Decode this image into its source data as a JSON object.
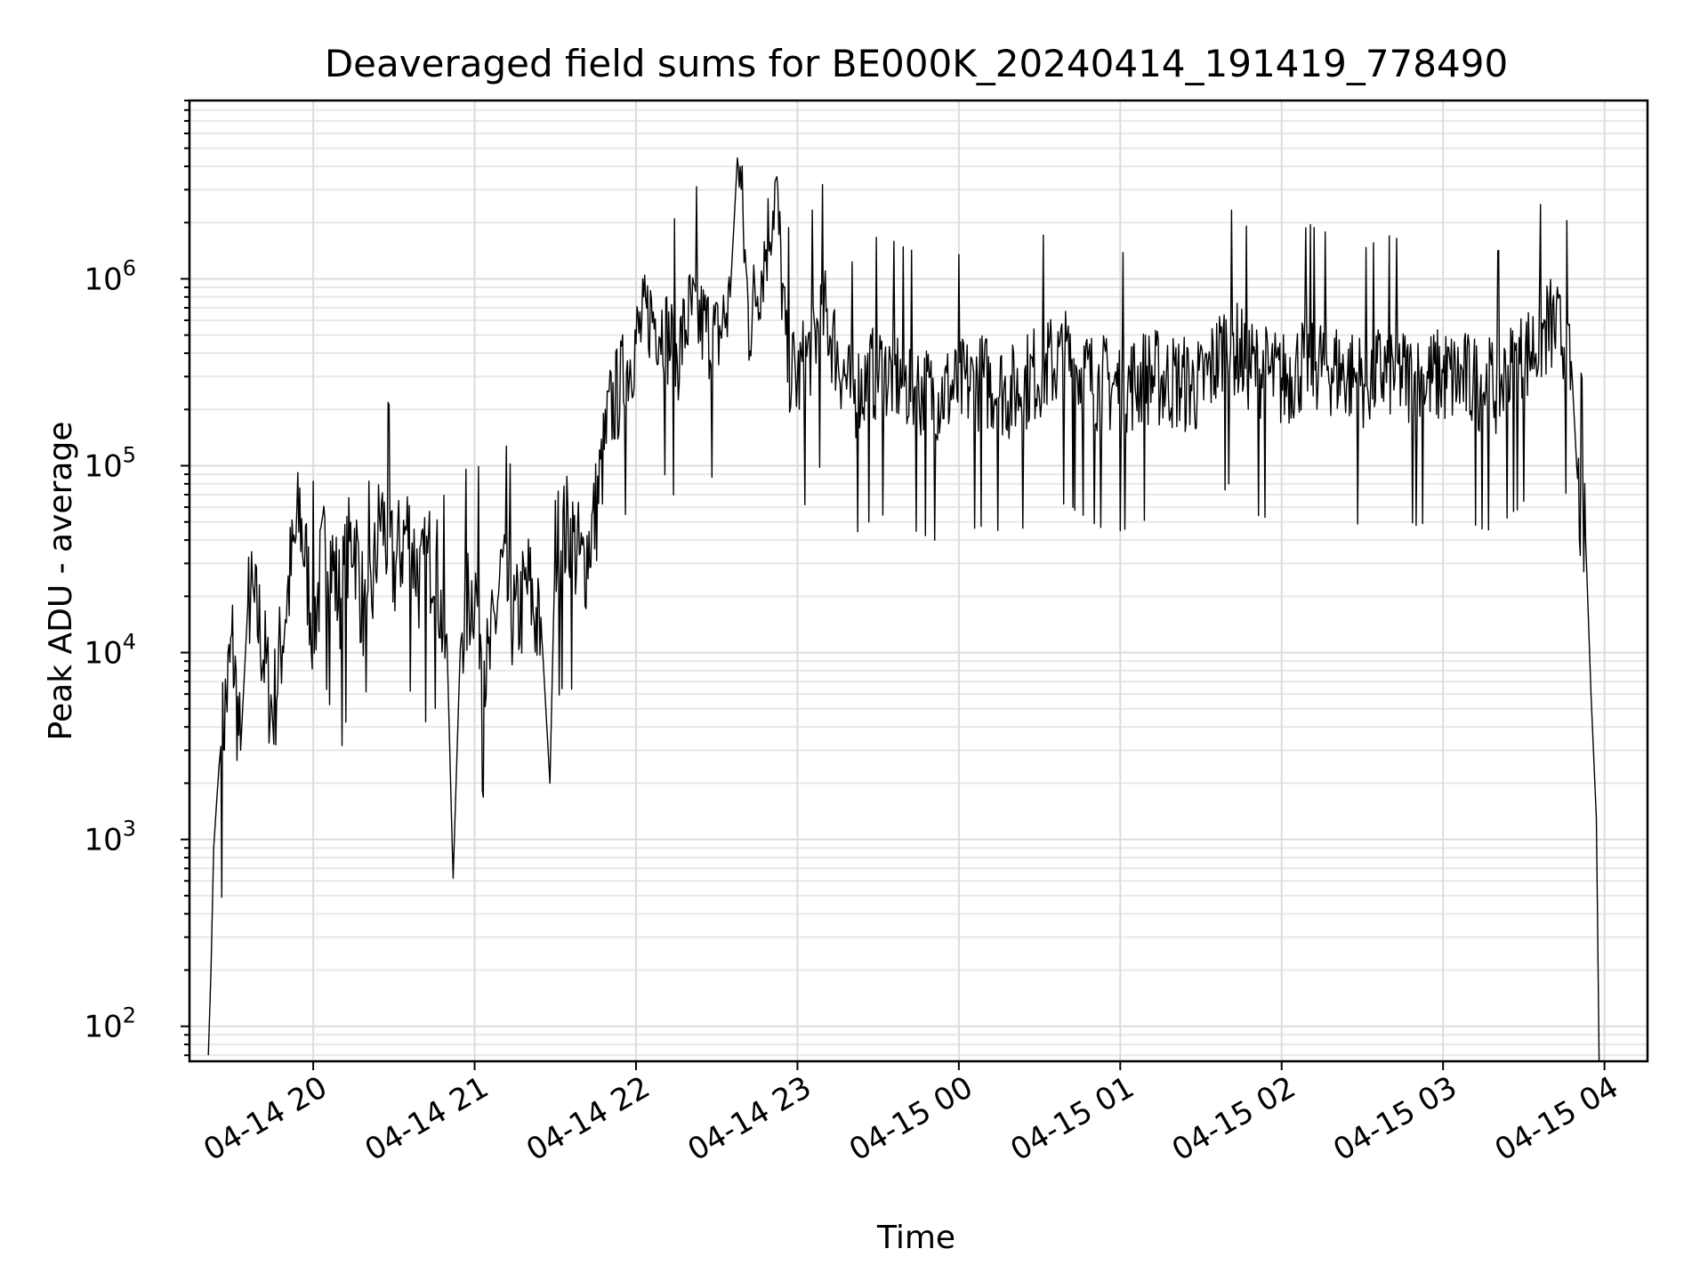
{
  "chart_data": {
    "type": "line",
    "title": "Deaveraged field sums for BE000K_20240414_191419_778490",
    "xlabel": "Time",
    "ylabel": "Peak ADU - average",
    "yscale": "log",
    "ylim": [
      65,
      9000000
    ],
    "xlim_hours_label": [
      "04-14 19:14",
      "04-15 04:16"
    ],
    "grid": true,
    "x_ticks": [
      "04-14 20",
      "04-14 21",
      "04-14 22",
      "04-14 23",
      "04-15 00",
      "04-15 01",
      "04-15 02",
      "04-15 03",
      "04-15 04"
    ],
    "y_ticks": [
      {
        "base": "10",
        "exp": "2",
        "value": 100
      },
      {
        "base": "10",
        "exp": "3",
        "value": 1000
      },
      {
        "base": "10",
        "exp": "4",
        "value": 10000
      },
      {
        "base": "10",
        "exp": "5",
        "value": 100000
      },
      {
        "base": "10",
        "exp": "6",
        "value": 1000000
      }
    ],
    "series": [
      {
        "color": "#000000",
        "points": [
          [
            "04-14 19:21",
            70
          ],
          [
            "04-14 19:22",
            200
          ],
          [
            "04-14 19:23",
            900
          ],
          [
            "04-14 19:25",
            2500
          ],
          [
            "04-14 19:27",
            5000
          ],
          [
            "04-14 19:30",
            12000
          ],
          [
            "04-14 19:33",
            3000
          ],
          [
            "04-14 19:36",
            22000
          ],
          [
            "04-14 19:40",
            15000
          ],
          [
            "04-14 19:45",
            5000
          ],
          [
            "04-14 19:50",
            20000
          ],
          [
            "04-14 19:55",
            60000
          ],
          [
            "04-14 20:00",
            15000
          ],
          [
            "04-14 20:05",
            45000
          ],
          [
            "04-14 20:10",
            20000
          ],
          [
            "04-14 20:15",
            50000
          ],
          [
            "04-14 20:20",
            12000
          ],
          [
            "04-14 20:25",
            60000
          ],
          [
            "04-14 20:30",
            30000
          ],
          [
            "04-14 20:35",
            50000
          ],
          [
            "04-14 20:40",
            25000
          ],
          [
            "04-14 20:45",
            40000
          ],
          [
            "04-14 20:50",
            8000
          ],
          [
            "04-14 20:52",
            620
          ],
          [
            "04-14 20:55",
            15000
          ],
          [
            "04-14 21:00",
            25000
          ],
          [
            "04-14 21:05",
            8000
          ],
          [
            "04-14 21:10",
            30000
          ],
          [
            "04-14 21:15",
            15000
          ],
          [
            "04-14 21:20",
            25000
          ],
          [
            "04-14 21:25",
            12000
          ],
          [
            "04-14 21:28",
            2000
          ],
          [
            "04-14 21:30",
            40000
          ],
          [
            "04-14 21:35",
            50000
          ],
          [
            "04-14 21:40",
            30000
          ],
          [
            "04-14 21:45",
            60000
          ],
          [
            "04-14 21:50",
            200000
          ],
          [
            "04-14 21:55",
            300000
          ],
          [
            "04-14 22:00",
            500000
          ],
          [
            "04-14 22:05",
            700000
          ],
          [
            "04-14 22:10",
            600000
          ],
          [
            "04-14 22:15",
            400000
          ],
          [
            "04-14 22:20",
            700000
          ],
          [
            "04-14 22:25",
            600000
          ],
          [
            "04-14 22:30",
            500000
          ],
          [
            "04-14 22:35",
            800000
          ],
          [
            "04-14 22:38",
            5500000
          ],
          [
            "04-14 22:42",
            600000
          ],
          [
            "04-14 22:48",
            1500000
          ],
          [
            "04-14 22:52",
            3300000
          ],
          [
            "04-14 22:56",
            400000
          ],
          [
            "04-14 23:00",
            300000
          ],
          [
            "04-14 23:10",
            700000
          ],
          [
            "04-14 23:20",
            250000
          ],
          [
            "04-14 23:30",
            350000
          ],
          [
            "04-14 23:40",
            300000
          ],
          [
            "04-14 23:50",
            250000
          ],
          [
            "04-15 00:00",
            280000
          ],
          [
            "04-15 00:10",
            300000
          ],
          [
            "04-15 00:20",
            260000
          ],
          [
            "04-15 00:30",
            350000
          ],
          [
            "04-15 00:40",
            400000
          ],
          [
            "04-15 00:50",
            300000
          ],
          [
            "04-15 01:00",
            280000
          ],
          [
            "04-15 01:10",
            320000
          ],
          [
            "04-15 01:20",
            300000
          ],
          [
            "04-15 01:30",
            280000
          ],
          [
            "04-15 01:40",
            500000
          ],
          [
            "04-15 01:50",
            350000
          ],
          [
            "04-15 02:00",
            300000
          ],
          [
            "04-15 02:10",
            400000
          ],
          [
            "04-15 02:20",
            350000
          ],
          [
            "04-15 02:30",
            300000
          ],
          [
            "04-15 02:40",
            350000
          ],
          [
            "04-15 02:50",
            300000
          ],
          [
            "04-15 03:00",
            320000
          ],
          [
            "04-15 03:10",
            300000
          ],
          [
            "04-15 03:20",
            280000
          ],
          [
            "04-15 03:30",
            400000
          ],
          [
            "04-15 03:40",
            600000
          ],
          [
            "04-15 03:45",
            500000
          ],
          [
            "04-15 03:48",
            300000
          ],
          [
            "04-15 03:50",
            80000
          ],
          [
            "04-15 03:53",
            40000
          ],
          [
            "04-15 03:55",
            6000
          ],
          [
            "04-15 03:57",
            1300
          ],
          [
            "04-15 03:58",
            65
          ]
        ]
      }
    ]
  }
}
